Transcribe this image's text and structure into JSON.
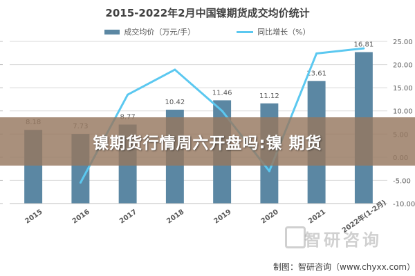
{
  "page": {
    "banner_text": "镍期货行情周六开盘吗:镍 期货",
    "source_text": "制图：智研咨询（www.chyxx.com）",
    "watermark_text": "智研咨询"
  },
  "colors": {
    "bar": "#5b87a3",
    "line": "#5bc8f0",
    "grid": "#d9d9d9",
    "axis_text": "#595959"
  },
  "chart_data": {
    "type": "bar",
    "title": "2015-2022年2月中国镍期货成交均价统计",
    "categories": [
      "2015",
      "2016",
      "2017",
      "2018",
      "2019",
      "2020",
      "2021",
      "2022年(1-2月)"
    ],
    "series": [
      {
        "name": "成交均价（万元/手）",
        "type": "bar",
        "axis": "left",
        "values": [
          8.18,
          7.73,
          8.77,
          10.42,
          11.46,
          11.12,
          13.61,
          16.81
        ]
      },
      {
        "name": "同比增长（%）",
        "type": "line",
        "axis": "right",
        "values": [
          null,
          -5.5,
          13.5,
          18.9,
          10.0,
          -3.0,
          22.4,
          23.5
        ]
      }
    ],
    "left_axis": {
      "range": [
        0,
        18
      ]
    },
    "right_axis": {
      "range": [
        -10,
        25
      ],
      "ticks": [
        "-10.00",
        "-5.00",
        "0.00",
        "5.00",
        "10.00",
        "15.00",
        "20.00",
        "25.00"
      ]
    },
    "legend_position": "top",
    "grid": true,
    "bar_labels": [
      "8.18",
      "7.73",
      "8.77",
      "10.42",
      "11.46",
      "11.12",
      "13.61",
      "16.81"
    ]
  }
}
